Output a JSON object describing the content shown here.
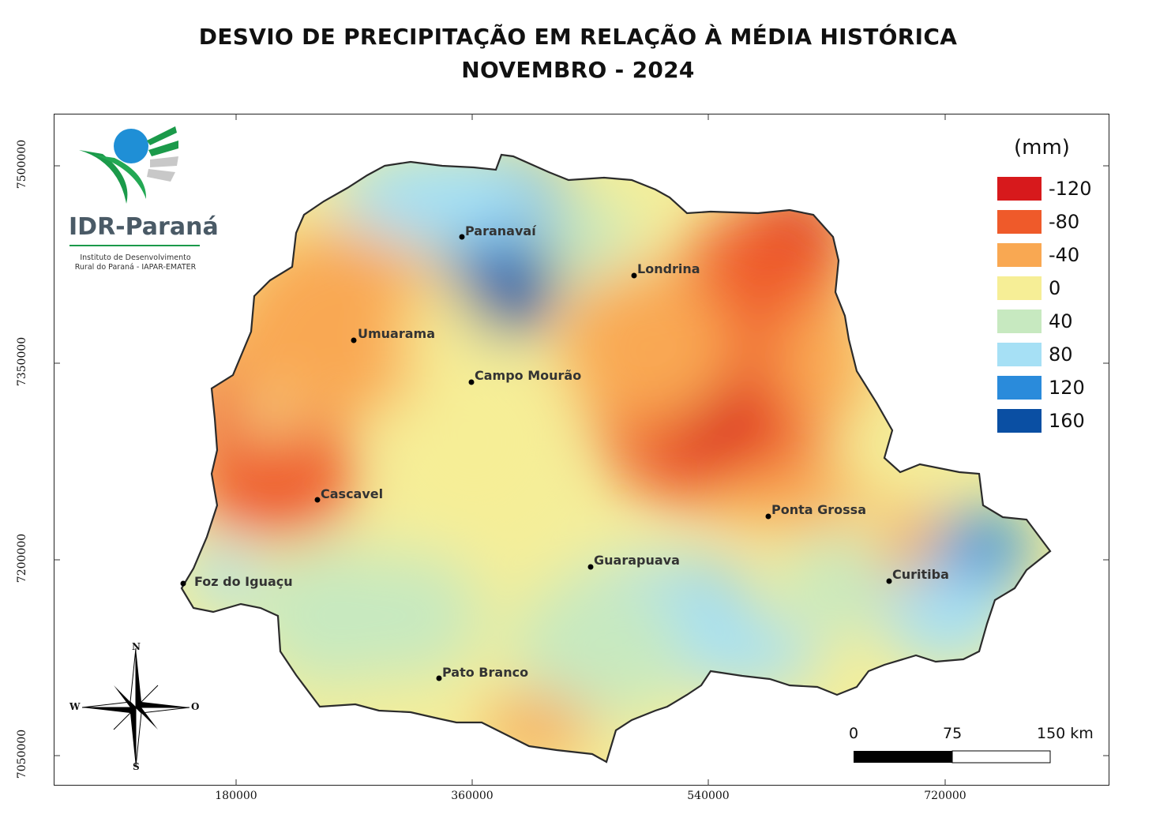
{
  "title": {
    "line1": "DESVIO DE PRECIPITAÇÃO EM RELAÇÃO À MÉDIA HISTÓRICA",
    "line2": "NOVEMBRO - 2024"
  },
  "logo": {
    "name": "IDR-Paraná",
    "subtitle_line1": "Instituto de Desenvolvimento",
    "subtitle_line2": "Rural do Paraná - IAPAR-EMATER"
  },
  "legend": {
    "title": "(mm)",
    "classes": [
      {
        "label": "-120",
        "color": "#d7191c"
      },
      {
        "label": "-80",
        "color": "#ef5a2a"
      },
      {
        "label": "-40",
        "color": "#f9a852"
      },
      {
        "label": "0",
        "color": "#f6ee96"
      },
      {
        "label": "40",
        "color": "#c7e9c0"
      },
      {
        "label": "80",
        "color": "#a6e0f5"
      },
      {
        "label": "120",
        "color": "#2a8bdb"
      },
      {
        "label": "160",
        "color": "#0a4fa3"
      }
    ]
  },
  "axes": {
    "y_ticks": [
      "7500000",
      "7350000",
      "7200000",
      "7050000"
    ],
    "x_ticks": [
      "180000",
      "360000",
      "540000",
      "720000"
    ]
  },
  "cities": [
    {
      "name": "Paranavaí"
    },
    {
      "name": "Londrina"
    },
    {
      "name": "Umuarama"
    },
    {
      "name": "Campo Mourão"
    },
    {
      "name": "Cascavel"
    },
    {
      "name": "Ponta Grossa"
    },
    {
      "name": "Guarapuava"
    },
    {
      "name": "Curitiba"
    },
    {
      "name": "Foz do Iguaçu"
    },
    {
      "name": "Pato Branco"
    }
  ],
  "scale_bar": {
    "labels": [
      "0",
      "75",
      "150 km"
    ]
  },
  "compass": {
    "n": "N",
    "s": "S",
    "w": "W",
    "e": "O"
  }
}
